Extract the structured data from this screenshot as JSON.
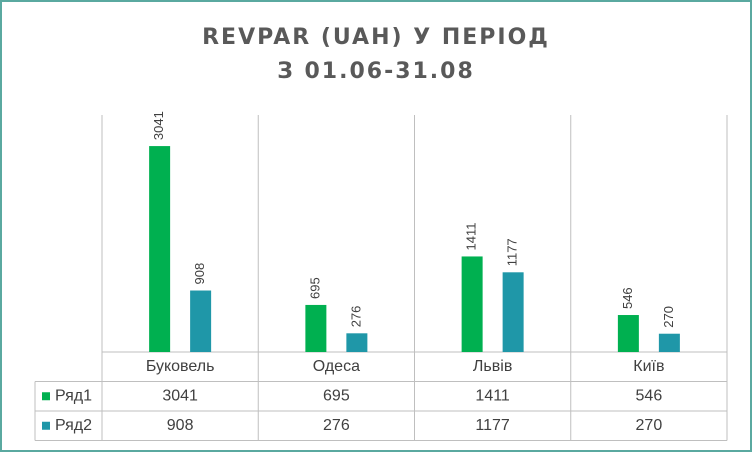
{
  "chart_data": {
    "type": "bar",
    "title": "REVPAR  (UAH) У ПЕРІОД",
    "subtitle": "З 01.06-31.08",
    "categories": [
      "Буковель",
      "Одеса",
      "Львів",
      "Київ"
    ],
    "series": [
      {
        "name": "Ряд1",
        "color": "#00b050",
        "values": [
          3041,
          695,
          1411,
          546
        ]
      },
      {
        "name": "Ряд2",
        "color": "#1f97a8",
        "values": [
          908,
          276,
          1177,
          270
        ]
      }
    ],
    "ylim": [
      0,
      3500
    ]
  }
}
